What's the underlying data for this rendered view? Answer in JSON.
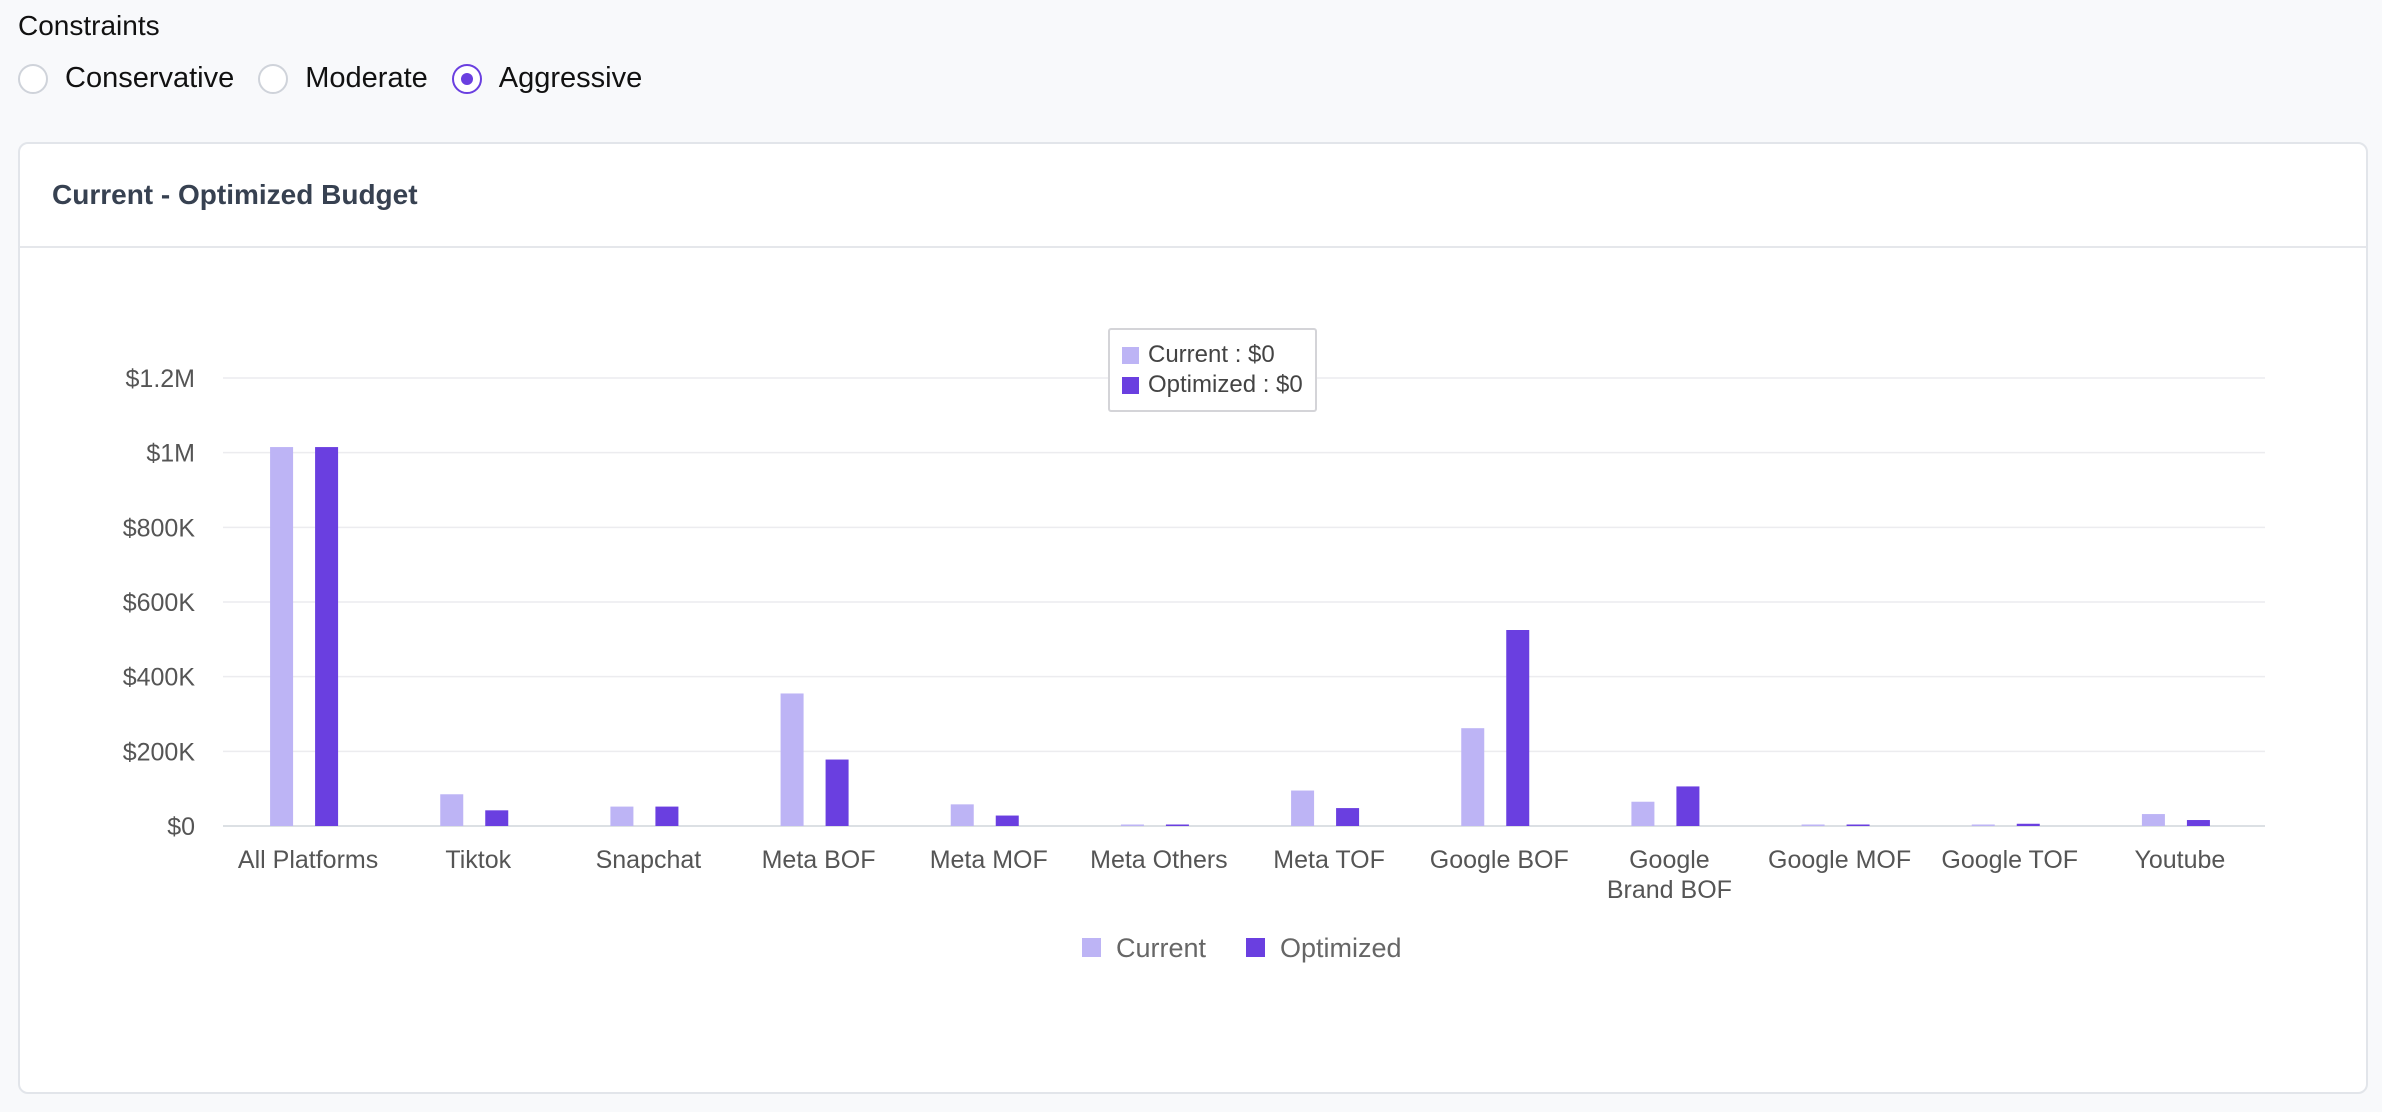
{
  "constraints": {
    "label": "Constraints",
    "options": [
      {
        "label": "Conservative",
        "checked": false
      },
      {
        "label": "Moderate",
        "checked": false
      },
      {
        "label": "Aggressive",
        "checked": true
      }
    ]
  },
  "card": {
    "title": "Current - Optimized Budget"
  },
  "colors": {
    "current": "#bdb4f5",
    "optimized": "#6a3fe0",
    "accent": "#6a3fe0"
  },
  "tooltip": {
    "current_text": "Current : $0",
    "optimized_text": "Optimized : $0"
  },
  "chart_data": {
    "type": "bar",
    "title": "Current - Optimized Budget",
    "xlabel": "",
    "ylabel": "",
    "ylim": [
      0,
      1200000
    ],
    "yticks": [
      0,
      200000,
      400000,
      600000,
      800000,
      1000000,
      1200000
    ],
    "ytick_labels": [
      "$0",
      "$200K",
      "$400K",
      "$600K",
      "$800K",
      "$1M",
      "$1.2M"
    ],
    "categories": [
      "All Platforms",
      "Tiktok",
      "Snapchat",
      "Meta BOF",
      "Meta MOF",
      "Meta Others",
      "Meta TOF",
      "Google BOF",
      "Google Brand BOF",
      "Google MOF",
      "Google TOF",
      "Youtube"
    ],
    "category_lines": [
      [
        "All Platforms"
      ],
      [
        "Tiktok"
      ],
      [
        "Snapchat"
      ],
      [
        "Meta BOF"
      ],
      [
        "Meta MOF"
      ],
      [
        "Meta Others"
      ],
      [
        "Meta TOF"
      ],
      [
        "Google BOF"
      ],
      [
        "Google",
        "Brand BOF"
      ],
      [
        "Google MOF"
      ],
      [
        "Google TOF"
      ],
      [
        "Youtube"
      ]
    ],
    "series": [
      {
        "name": "Current",
        "values": [
          1015000,
          85000,
          52000,
          355000,
          58000,
          4000,
          95000,
          262000,
          65000,
          4000,
          3000,
          32000
        ]
      },
      {
        "name": "Optimized",
        "values": [
          1015000,
          42000,
          52000,
          178000,
          28000,
          4000,
          48000,
          525000,
          106000,
          4000,
          6000,
          16000
        ]
      }
    ],
    "legend": "bottom",
    "grid": true
  }
}
